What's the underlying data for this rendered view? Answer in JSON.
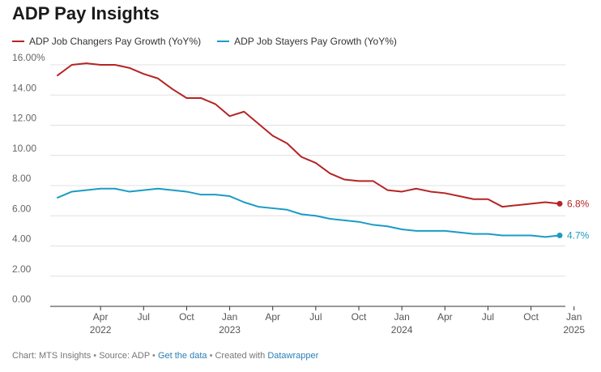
{
  "chart_data": {
    "type": "line",
    "title": "ADP Pay Insights",
    "xlabel": "",
    "ylabel": "",
    "ylim": [
      0,
      16
    ],
    "y_ticks": [
      0,
      2,
      4,
      6,
      8,
      10,
      12,
      14,
      16
    ],
    "y_tick_labels": [
      "0.00",
      "2.00",
      "4.00",
      "6.00",
      "8.00",
      "10.00",
      "12.00",
      "14.00",
      "16.00%"
    ],
    "x_start": "2022-01",
    "x_ticks": [
      {
        "index": 3,
        "label": "Apr",
        "year": "2022"
      },
      {
        "index": 6,
        "label": "Jul",
        "year": ""
      },
      {
        "index": 9,
        "label": "Oct",
        "year": ""
      },
      {
        "index": 12,
        "label": "Jan",
        "year": "2023"
      },
      {
        "index": 15,
        "label": "Apr",
        "year": ""
      },
      {
        "index": 18,
        "label": "Jul",
        "year": ""
      },
      {
        "index": 21,
        "label": "Oct",
        "year": ""
      },
      {
        "index": 24,
        "label": "Jan",
        "year": "2024"
      },
      {
        "index": 27,
        "label": "Apr",
        "year": ""
      },
      {
        "index": 30,
        "label": "Jul",
        "year": ""
      },
      {
        "index": 33,
        "label": "Oct",
        "year": ""
      },
      {
        "index": 36,
        "label": "Jan",
        "year": "2025"
      }
    ],
    "series": [
      {
        "name": "ADP Job Changers Pay Growth (YoY%)",
        "color": "#b52424",
        "end_label": "6.8%",
        "values": [
          15.3,
          16.0,
          16.1,
          16.0,
          16.0,
          15.8,
          15.4,
          15.1,
          14.4,
          13.8,
          13.8,
          13.4,
          12.6,
          12.9,
          12.1,
          11.3,
          10.8,
          9.9,
          9.5,
          8.8,
          8.4,
          8.3,
          8.3,
          7.7,
          7.6,
          7.8,
          7.6,
          7.5,
          7.3,
          7.1,
          7.1,
          6.6,
          6.7,
          6.8,
          6.9,
          6.8
        ]
      },
      {
        "name": "ADP Job Stayers Pay Growth (YoY%)",
        "color": "#1a9cc4",
        "end_label": "4.7%",
        "values": [
          7.2,
          7.6,
          7.7,
          7.8,
          7.8,
          7.6,
          7.7,
          7.8,
          7.7,
          7.6,
          7.4,
          7.4,
          7.3,
          6.9,
          6.6,
          6.5,
          6.4,
          6.1,
          6.0,
          5.8,
          5.7,
          5.6,
          5.4,
          5.3,
          5.1,
          5.0,
          5.0,
          5.0,
          4.9,
          4.8,
          4.8,
          4.7,
          4.7,
          4.7,
          4.6,
          4.7
        ]
      }
    ]
  },
  "footer": {
    "chart_by": "Chart: MTS Insights",
    "source": "Source: ADP",
    "get_data": "Get the data",
    "created_with": "Created with",
    "datawrapper": "Datawrapper",
    "separator": "•"
  }
}
